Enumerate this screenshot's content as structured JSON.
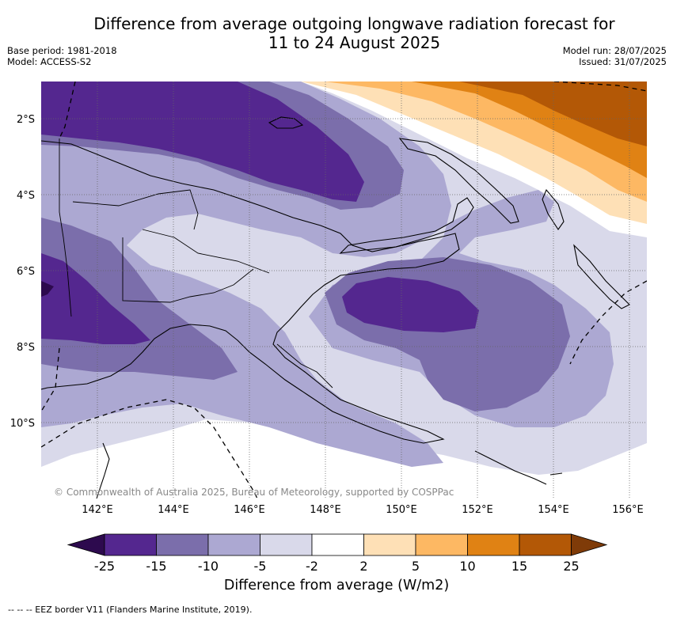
{
  "header": {
    "title_line1": "Difference from average outgoing longwave radiation forecast for",
    "title_line2": "11 to 24 August 2025",
    "base_period": "Base period: 1981-2018",
    "model": "Model: ACCESS-S2",
    "model_run": "Model run: 28/07/2025",
    "issued": "Issued: 31/07/2025"
  },
  "map": {
    "lat_labels": [
      "2°S",
      "4°S",
      "6°S",
      "8°S",
      "10°S"
    ],
    "lon_labels": [
      "142°E",
      "144°E",
      "146°E",
      "148°E",
      "150°E",
      "152°E",
      "154°E",
      "156°E"
    ],
    "copyright": "© Commonwealth of Australia 2025, Bureau of Meteorology, supported by COSPPac"
  },
  "colorbar": {
    "levels": [
      "-25",
      "-15",
      "-10",
      "-5",
      "-2",
      "2",
      "5",
      "10",
      "15",
      "25"
    ],
    "colors": [
      "#2d0a4e",
      "#54278f",
      "#7b6eab",
      "#aca8d2",
      "#d9d9ea",
      "#ffffff",
      "#fee0b6",
      "#fdb863",
      "#e08214",
      "#b35806",
      "#7f3b08"
    ],
    "label": "Difference from average (W/m2)"
  },
  "footer": {
    "eez_note": "--  --  -- EEZ border V11 (Flanders Marine Institute, 2019)."
  }
}
